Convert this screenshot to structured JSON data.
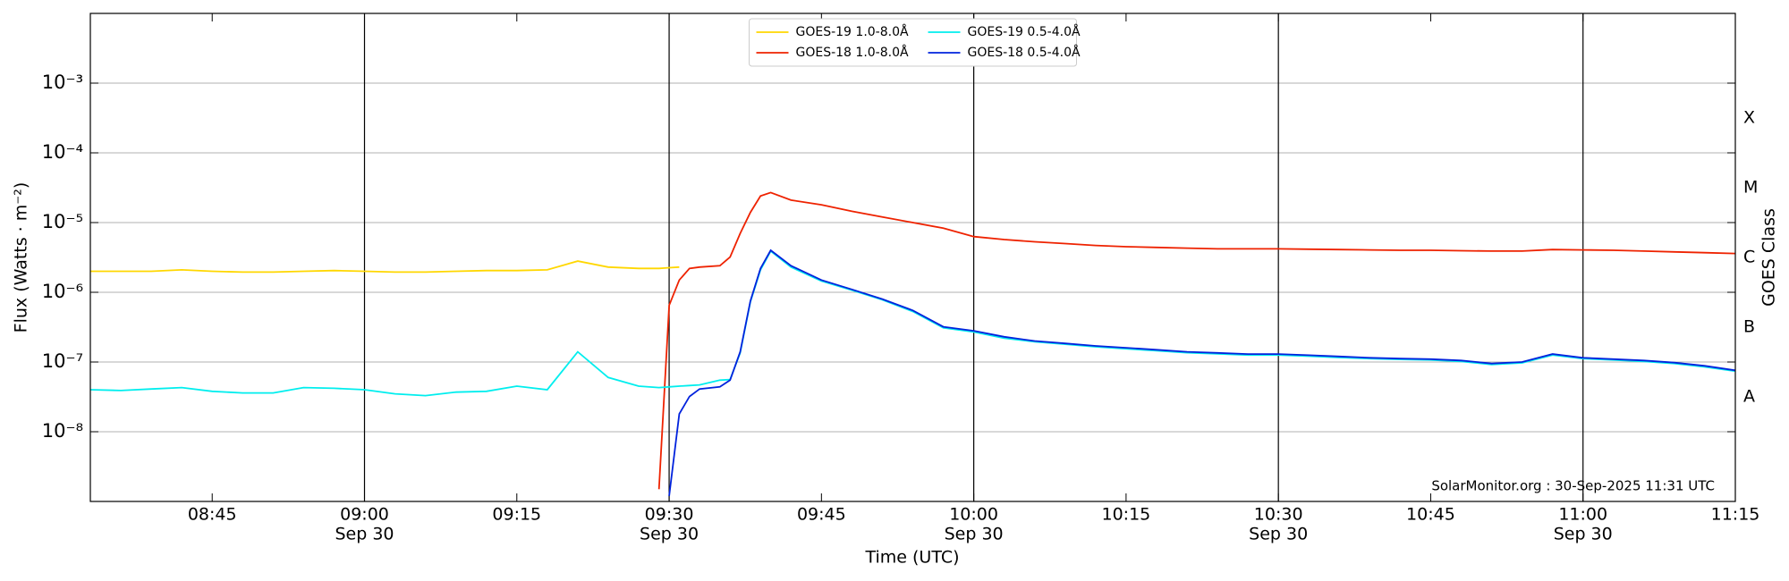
{
  "chart_data": {
    "type": "line",
    "x": [
      "08:33",
      "08:36",
      "08:39",
      "08:42",
      "08:45",
      "08:48",
      "08:51",
      "08:54",
      "08:57",
      "09:00",
      "09:03",
      "09:06",
      "09:09",
      "09:12",
      "09:15",
      "09:18",
      "09:21",
      "09:24",
      "09:27",
      "09:29",
      "09:30",
      "09:31",
      "09:32",
      "09:33",
      "09:35",
      "09:36",
      "09:37",
      "09:38",
      "09:39",
      "09:40",
      "09:42",
      "09:45",
      "09:48",
      "09:51",
      "09:54",
      "09:57",
      "10:00",
      "10:03",
      "10:06",
      "10:09",
      "10:12",
      "10:15",
      "10:18",
      "10:21",
      "10:24",
      "10:27",
      "10:30",
      "10:33",
      "10:36",
      "10:39",
      "10:42",
      "10:45",
      "10:48",
      "10:51",
      "10:54",
      "10:57",
      "11:00",
      "11:03",
      "11:06",
      "11:09",
      "11:12",
      "11:15"
    ],
    "series": [
      {
        "name": "GOES-19 1.0-8.0Å",
        "color": "#ffd700",
        "values": [
          2e-06,
          2e-06,
          2e-06,
          2.1e-06,
          2e-06,
          1.95e-06,
          1.95e-06,
          2e-06,
          2.05e-06,
          2e-06,
          1.95e-06,
          1.95e-06,
          2e-06,
          2.05e-06,
          2.05e-06,
          2.1e-06,
          2.8e-06,
          2.3e-06,
          2.2e-06,
          2.2e-06,
          2.25e-06,
          2.3e-06,
          null,
          null,
          null,
          null,
          null,
          null,
          null,
          null,
          null,
          null,
          null,
          null,
          null,
          null,
          null,
          null,
          null,
          null,
          null,
          null,
          null,
          null,
          null,
          null,
          null,
          null,
          null,
          null,
          null,
          null,
          null,
          null,
          null,
          null,
          null,
          null,
          null,
          null,
          null,
          null
        ]
      },
      {
        "name": "GOES-18 1.0-8.0Å",
        "color": "#ee2200",
        "values": [
          null,
          null,
          null,
          null,
          null,
          null,
          null,
          null,
          null,
          null,
          null,
          null,
          null,
          null,
          null,
          null,
          null,
          null,
          null,
          1.5e-09,
          6.5e-07,
          1.5e-06,
          2.2e-06,
          2.3e-06,
          2.4e-06,
          3.2e-06,
          7e-06,
          1.4e-05,
          2.4e-05,
          2.7e-05,
          2.1e-05,
          1.8e-05,
          1.45e-05,
          1.2e-05,
          1e-05,
          8.3e-06,
          6.3e-06,
          5.7e-06,
          5.3e-06,
          5e-06,
          4.7e-06,
          4.5e-06,
          4.4e-06,
          4.3e-06,
          4.2e-06,
          4.2e-06,
          4.2e-06,
          4.15e-06,
          4.1e-06,
          4.05e-06,
          4e-06,
          4e-06,
          3.95e-06,
          3.9e-06,
          3.9e-06,
          4.1e-06,
          4.05e-06,
          4e-06,
          3.9e-06,
          3.8e-06,
          3.7e-06,
          3.6e-06
        ]
      },
      {
        "name": "GOES-19 0.5-4.0Å",
        "color": "#00eeee",
        "values": [
          4e-08,
          3.9e-08,
          4.1e-08,
          4.3e-08,
          3.8e-08,
          3.6e-08,
          3.6e-08,
          4.3e-08,
          4.2e-08,
          4e-08,
          3.5e-08,
          3.3e-08,
          3.7e-08,
          3.8e-08,
          4.5e-08,
          4e-08,
          1.4e-07,
          6e-08,
          4.5e-08,
          4.3e-08,
          4.4e-08,
          4.5e-08,
          4.6e-08,
          4.7e-08,
          5.5e-08,
          5.6e-08,
          1.35e-07,
          7.3e-07,
          2.1e-06,
          3.9e-06,
          2.3e-06,
          1.45e-06,
          1.07e-06,
          7.8e-07,
          5.3e-07,
          3.1e-07,
          2.7e-07,
          2.2e-07,
          1.95e-07,
          1.8e-07,
          1.65e-07,
          1.55e-07,
          1.45e-07,
          1.36e-07,
          1.31e-07,
          1.26e-07,
          1.26e-07,
          1.21e-07,
          1.16e-07,
          1.12e-07,
          1.09e-07,
          1.07e-07,
          1.02e-07,
          9.2e-08,
          9.7e-08,
          1.26e-07,
          1.12e-07,
          1.07e-07,
          1.02e-07,
          9.5e-08,
          8.5e-08,
          7.4e-08
        ]
      },
      {
        "name": "GOES-18 0.5-4.0Å",
        "color": "#0022dd",
        "values": [
          null,
          null,
          null,
          null,
          null,
          null,
          null,
          null,
          null,
          null,
          null,
          null,
          null,
          null,
          null,
          null,
          null,
          null,
          null,
          null,
          1.2e-09,
          1.8e-08,
          3.2e-08,
          4.1e-08,
          4.4e-08,
          5.5e-08,
          1.4e-07,
          7.5e-07,
          2.2e-06,
          4e-06,
          2.4e-06,
          1.5e-06,
          1.1e-06,
          8e-07,
          5.5e-07,
          3.2e-07,
          2.8e-07,
          2.3e-07,
          2e-07,
          1.85e-07,
          1.7e-07,
          1.6e-07,
          1.5e-07,
          1.4e-07,
          1.35e-07,
          1.3e-07,
          1.3e-07,
          1.25e-07,
          1.2e-07,
          1.15e-07,
          1.12e-07,
          1.1e-07,
          1.05e-07,
          9.5e-08,
          1e-07,
          1.3e-07,
          1.15e-07,
          1.1e-07,
          1.05e-07,
          9.8e-08,
          8.8e-08,
          7.6e-08
        ]
      }
    ],
    "xlim": [
      "08:33",
      "11:15"
    ],
    "xticks": [
      {
        "value": "08:45",
        "label": "08:45"
      },
      {
        "value": "09:00",
        "label": "09:00",
        "date": "Sep 30"
      },
      {
        "value": "09:15",
        "label": "09:15"
      },
      {
        "value": "09:30",
        "label": "09:30",
        "date": "Sep 30"
      },
      {
        "value": "09:45",
        "label": "09:45"
      },
      {
        "value": "10:00",
        "label": "10:00",
        "date": "Sep 30"
      },
      {
        "value": "10:15",
        "label": "10:15"
      },
      {
        "value": "10:30",
        "label": "10:30",
        "date": "Sep 30"
      },
      {
        "value": "10:45",
        "label": "10:45"
      },
      {
        "value": "11:00",
        "label": "11:00",
        "date": "Sep 30"
      },
      {
        "value": "11:15",
        "label": "11:15"
      }
    ],
    "ylim": [
      1e-09,
      0.01
    ],
    "yscale": "log",
    "yticks": [
      {
        "value": 1e-08,
        "label": "10⁻⁸"
      },
      {
        "value": 1e-07,
        "label": "10⁻⁷"
      },
      {
        "value": 1e-06,
        "label": "10⁻⁶"
      },
      {
        "value": 1e-05,
        "label": "10⁻⁵"
      },
      {
        "value": 0.0001,
        "label": "10⁻⁴"
      },
      {
        "value": 0.001,
        "label": "10⁻³"
      }
    ],
    "y2lim": [
      1e-09,
      0.01
    ],
    "y2ticks": [
      {
        "value": 3.16e-08,
        "label": "A"
      },
      {
        "value": 3.16e-07,
        "label": "B"
      },
      {
        "value": 3.16e-06,
        "label": "C"
      },
      {
        "value": 3.16e-05,
        "label": "M"
      },
      {
        "value": 0.000316,
        "label": "X"
      }
    ],
    "xlabel": "Time (UTC)",
    "ylabel": "Flux (Watts · m⁻²)",
    "y2label": "GOES Class",
    "annotation": "SolarMonitor.org : 30-Sep-2025 11:31 UTC",
    "grid": true,
    "legend": "upper center"
  }
}
